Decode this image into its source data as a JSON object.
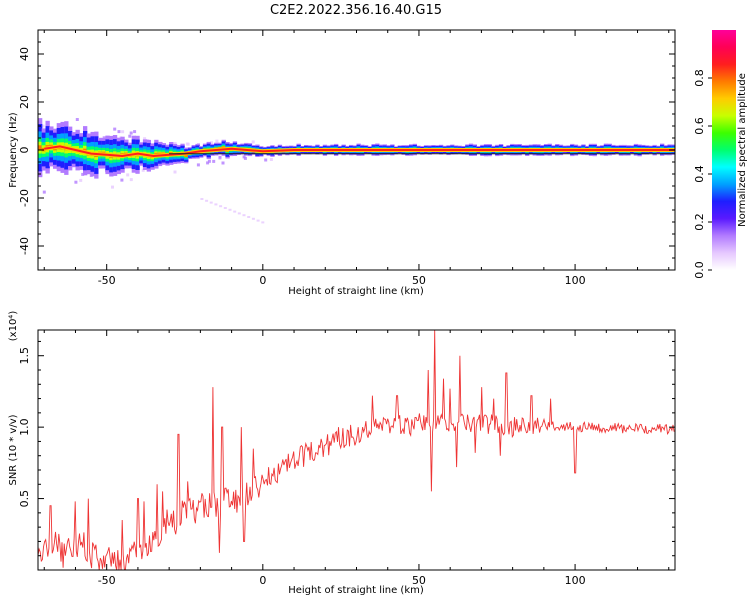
{
  "title": "C2E2.2022.356.16.40.G15",
  "chart_data": [
    {
      "type": "heatmap",
      "xlabel": "Height of straight line (km)",
      "ylabel": "Frequency (Hz)",
      "xlim": [
        -72,
        132
      ],
      "ylim": [
        -50,
        50
      ],
      "xticks": [
        -50,
        0,
        50,
        100
      ],
      "yticks": [
        -40,
        -20,
        0,
        20,
        40
      ],
      "xtick_labels": [
        "-50",
        "0",
        "50",
        "100"
      ],
      "ytick_labels": [
        "-40",
        "-20",
        "0",
        "20",
        "40"
      ],
      "colorbar": {
        "label": "Normalized spectral amplitude",
        "range": [
          0.0,
          1.0
        ],
        "ticks": [
          0.0,
          0.2,
          0.4,
          0.6,
          0.8
        ],
        "tick_labels": [
          "0.0",
          "0.2",
          "0.4",
          "0.6",
          "0.8"
        ],
        "colormap": [
          "#ffffff",
          "#e6c8ff",
          "#b27bff",
          "#5a1aff",
          "#1e1eff",
          "#00a0ff",
          "#00ffff",
          "#00ff6e",
          "#3cff00",
          "#c8ff00",
          "#ffcc00",
          "#ff7a00",
          "#ff1e1e",
          "#ff0055",
          "#ff0099"
        ]
      },
      "center_trace": [
        {
          "x": -70,
          "y": 0.5
        },
        {
          "x": -65,
          "y": 1.5
        },
        {
          "x": -60,
          "y": 0
        },
        {
          "x": -55,
          "y": -1.5
        },
        {
          "x": -50,
          "y": -2
        },
        {
          "x": -45,
          "y": -2.5
        },
        {
          "x": -40,
          "y": -1.5
        },
        {
          "x": -35,
          "y": -2.5
        },
        {
          "x": -30,
          "y": -2
        },
        {
          "x": -25,
          "y": -1.5
        },
        {
          "x": -20,
          "y": -0.5
        },
        {
          "x": -15,
          "y": 0
        },
        {
          "x": -10,
          "y": 0.5
        },
        {
          "x": -5,
          "y": 0
        },
        {
          "x": 0,
          "y": -0.5
        },
        {
          "x": 10,
          "y": 0
        },
        {
          "x": 30,
          "y": 0
        },
        {
          "x": 50,
          "y": 0
        },
        {
          "x": 70,
          "y": 0
        },
        {
          "x": 90,
          "y": 0
        },
        {
          "x": 110,
          "y": 0
        },
        {
          "x": 132,
          "y": 0
        }
      ],
      "spread_halfwidth_hz": [
        {
          "x": -70,
          "w": 10
        },
        {
          "x": -55,
          "w": 8
        },
        {
          "x": -40,
          "w": 6
        },
        {
          "x": -25,
          "w": 3
        },
        {
          "x": -10,
          "w": 3
        },
        {
          "x": 0,
          "w": 2
        },
        {
          "x": 40,
          "w": 2
        },
        {
          "x": 132,
          "w": 2
        }
      ]
    },
    {
      "type": "line",
      "xlabel": "Height of straight line (km)",
      "ylabel": "SNR (10 * v/v)",
      "y_multiplier": "(x10⁴)",
      "xlim": [
        -72,
        132
      ],
      "ylim": [
        0.0,
        1.68
      ],
      "xticks": [
        -50,
        0,
        50,
        100
      ],
      "yticks": [
        0.5,
        1.0,
        1.5
      ],
      "xtick_labels": [
        "-50",
        "0",
        "50",
        "100"
      ],
      "ytick_labels": [
        "0.5",
        "1.0",
        "1.5"
      ],
      "color": "#ee3333",
      "x": [
        -72,
        -70,
        -68,
        -66,
        -64,
        -62,
        -60,
        -58,
        -56,
        -54,
        -52,
        -50,
        -48,
        -46,
        -44,
        -42,
        -40,
        -38,
        -36,
        -34,
        -32,
        -30,
        -28,
        -26,
        -24,
        -22,
        -20,
        -18,
        -16,
        -14,
        -12,
        -10,
        -8,
        -6,
        -4,
        -2,
        0,
        2,
        4,
        6,
        8,
        10,
        12,
        14,
        16,
        18,
        20,
        22,
        24,
        26,
        28,
        30,
        32,
        34,
        36,
        38,
        40,
        42,
        44,
        46,
        48,
        50,
        52,
        54,
        56,
        58,
        60,
        62,
        64,
        66,
        68,
        70,
        72,
        74,
        76,
        78,
        80,
        82,
        84,
        86,
        88,
        90,
        92,
        94,
        96,
        98,
        100,
        102,
        104,
        106,
        108,
        110,
        112,
        114,
        116,
        118,
        120,
        122,
        124,
        126,
        128,
        130,
        132
      ],
      "y": [
        0.08,
        0.15,
        0.12,
        0.22,
        0.1,
        0.18,
        0.14,
        0.25,
        0.08,
        0.12,
        0.05,
        0.06,
        0.1,
        0.04,
        0.08,
        0.12,
        0.1,
        0.14,
        0.16,
        0.22,
        0.3,
        0.38,
        0.33,
        0.4,
        0.45,
        0.4,
        0.47,
        0.44,
        0.5,
        0.38,
        0.52,
        0.5,
        0.48,
        0.55,
        0.52,
        0.58,
        0.6,
        0.64,
        0.68,
        0.7,
        0.73,
        0.75,
        0.78,
        0.8,
        0.83,
        0.85,
        0.88,
        0.9,
        0.92,
        0.93,
        0.95,
        0.96,
        0.97,
        1.0,
        1.0,
        1.02,
        1.01,
        1.03,
        1.02,
        1.0,
        1.01,
        1.03,
        1.02,
        1.0,
        1.05,
        1.02,
        1.04,
        1.03,
        1.05,
        1.01,
        1.03,
        1.04,
        1.02,
        1.03,
        1.01,
        1.02,
        1.0,
        1.03,
        1.02,
        1.0,
        1.01,
        1.02,
        1.0,
        1.01,
        1.0,
        1.02,
        1.01,
        1.0,
        1.02,
        1.01,
        0.99,
        1.0,
        0.99,
        1.0,
        0.98,
        1.0,
        0.99,
        0.98,
        0.99,
        1.0,
        0.98,
        0.99,
        0.98
      ],
      "spikes": [
        {
          "x": -68,
          "y": 0.45
        },
        {
          "x": -60,
          "y": 0.48
        },
        {
          "x": -56,
          "y": 0.5
        },
        {
          "x": -45,
          "y": 0.35
        },
        {
          "x": -40,
          "y": 0.5
        },
        {
          "x": -38,
          "y": 0.48
        },
        {
          "x": -34,
          "y": 0.6
        },
        {
          "x": -32,
          "y": 0.55
        },
        {
          "x": -27,
          "y": 0.95
        },
        {
          "x": -24,
          "y": 0.62
        },
        {
          "x": -16,
          "y": 1.28
        },
        {
          "x": -14,
          "y": 0.12
        },
        {
          "x": -13,
          "y": 1.0
        },
        {
          "x": -7,
          "y": 1.0
        },
        {
          "x": -6,
          "y": 0.2
        },
        {
          "x": -3,
          "y": 0.85
        },
        {
          "x": 2,
          "y": 0.72
        },
        {
          "x": 35,
          "y": 1.22
        },
        {
          "x": 43,
          "y": 1.22
        },
        {
          "x": 53,
          "y": 1.4
        },
        {
          "x": 54,
          "y": 0.55
        },
        {
          "x": 55,
          "y": 1.68
        },
        {
          "x": 58,
          "y": 1.34
        },
        {
          "x": 60,
          "y": 1.27
        },
        {
          "x": 62,
          "y": 0.72
        },
        {
          "x": 63,
          "y": 1.5
        },
        {
          "x": 65,
          "y": 1.0
        },
        {
          "x": 68,
          "y": 0.82
        },
        {
          "x": 70,
          "y": 1.28
        },
        {
          "x": 74,
          "y": 1.2
        },
        {
          "x": 76,
          "y": 0.8
        },
        {
          "x": 78,
          "y": 1.38
        },
        {
          "x": 86,
          "y": 1.22
        },
        {
          "x": 92,
          "y": 1.2
        },
        {
          "x": 100,
          "y": 0.68
        }
      ]
    }
  ]
}
